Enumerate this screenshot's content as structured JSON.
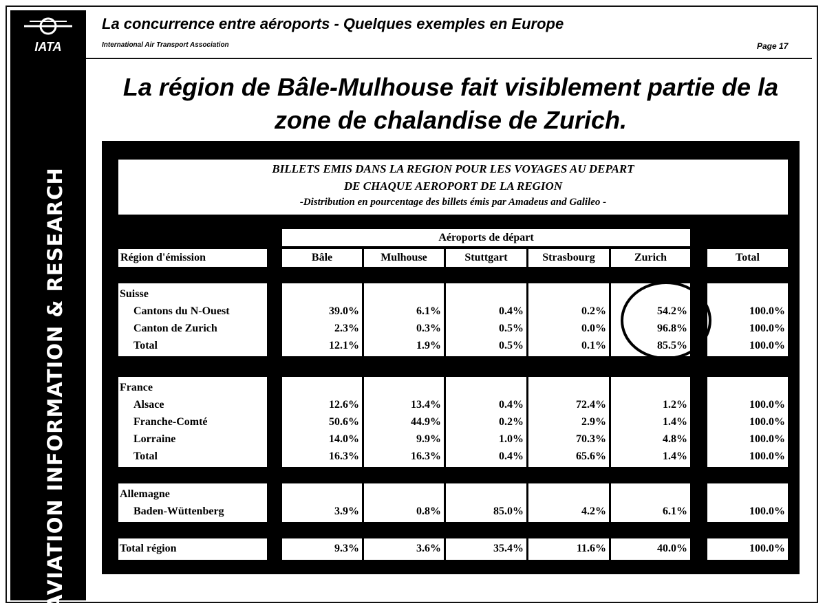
{
  "sidebar": {
    "logo": "IATA",
    "text": "AVIATION INFORMATION & RESEARCH"
  },
  "header": {
    "title": "La concurrence entre aéroports - Quelques exemples en Europe",
    "organization": "International Air Transport Association",
    "page": "Page 17"
  },
  "headline": [
    "La région de Bâle-Mulhouse fait visiblement partie de la",
    "zone de chalandise de Zurich."
  ],
  "table": {
    "title_lines": [
      "BILLETS EMIS DANS LA REGION POUR LES VOYAGES AU DEPART",
      "DE CHAQUE AEROPORT DE LA REGION",
      "-Distribution en pourcentage des billets émis par Amadeus and Galileo -"
    ],
    "group_header": "Aéroports de départ",
    "columns": [
      "Région d'émission",
      "Bâle",
      "Mulhouse",
      "Stuttgart",
      "Strasbourg",
      "Zurich",
      "Total"
    ],
    "groups": [
      {
        "name": "Suisse",
        "rows": [
          {
            "label": "Cantons du N-Ouest",
            "values": [
              "39.0%",
              "6.1%",
              "0.4%",
              "0.2%",
              "54.2%",
              "100.0%"
            ]
          },
          {
            "label": "Canton de Zurich",
            "values": [
              "2.3%",
              "0.3%",
              "0.5%",
              "0.0%",
              "96.8%",
              "100.0%"
            ]
          },
          {
            "label": "Total",
            "values": [
              "12.1%",
              "1.9%",
              "0.5%",
              "0.1%",
              "85.5%",
              "100.0%"
            ]
          }
        ]
      },
      {
        "name": "France",
        "rows": [
          {
            "label": "Alsace",
            "values": [
              "12.6%",
              "13.4%",
              "0.4%",
              "72.4%",
              "1.2%",
              "100.0%"
            ]
          },
          {
            "label": "Franche-Comté",
            "values": [
              "50.6%",
              "44.9%",
              "0.2%",
              "2.9%",
              "1.4%",
              "100.0%"
            ]
          },
          {
            "label": "Lorraine",
            "values": [
              "14.0%",
              "9.9%",
              "1.0%",
              "70.3%",
              "4.8%",
              "100.0%"
            ]
          },
          {
            "label": "Total",
            "values": [
              "16.3%",
              "16.3%",
              "0.4%",
              "65.6%",
              "1.4%",
              "100.0%"
            ]
          }
        ]
      },
      {
        "name": "Allemagne",
        "rows": [
          {
            "label": "Baden-Wüttenberg",
            "values": [
              "3.9%",
              "0.8%",
              "85.0%",
              "4.2%",
              "6.1%",
              "100.0%"
            ]
          }
        ]
      }
    ],
    "total_row": {
      "label": "Total région",
      "values": [
        "9.3%",
        "3.6%",
        "35.4%",
        "11.6%",
        "40.0%",
        "100.0%"
      ]
    }
  }
}
